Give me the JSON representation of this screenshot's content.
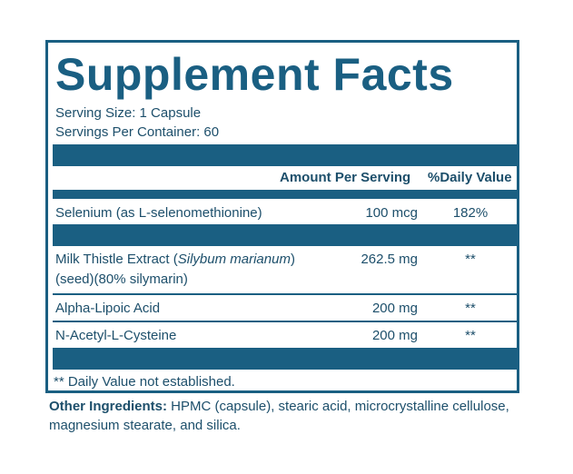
{
  "panel": {
    "title": "Supplement Facts",
    "serving_size": "Serving Size: 1 Capsule",
    "servings_per_container": "Servings Per Container: 60",
    "header": {
      "amount": "Amount Per Serving",
      "daily_value": "%Daily Value"
    },
    "rows": [
      {
        "name": "Selenium (as L-selenomethionine)",
        "amount": "100 mcg",
        "dv": "182%"
      },
      {
        "name_prefix": "Milk Thistle Extract (",
        "name_italic": "Silybum marianum",
        "name_suffix": ")",
        "name_line2": "(seed)(80% silymarin)",
        "amount": "262.5 mg",
        "dv": "**"
      },
      {
        "name": "Alpha-Lipoic Acid",
        "amount": "200 mg",
        "dv": "**"
      },
      {
        "name": "N-Acetyl-L-Cysteine",
        "amount": "200 mg",
        "dv": "**"
      }
    ],
    "footnote": "** Daily Value not established."
  },
  "other_ingredients": {
    "label": "Other Ingredients:",
    "text": " HPMC (capsule), stearic acid, microcrystalline cellulose, magnesium stearate, and silica."
  },
  "colors": {
    "accent": "#1a5f82",
    "text": "#1d4f6b"
  }
}
